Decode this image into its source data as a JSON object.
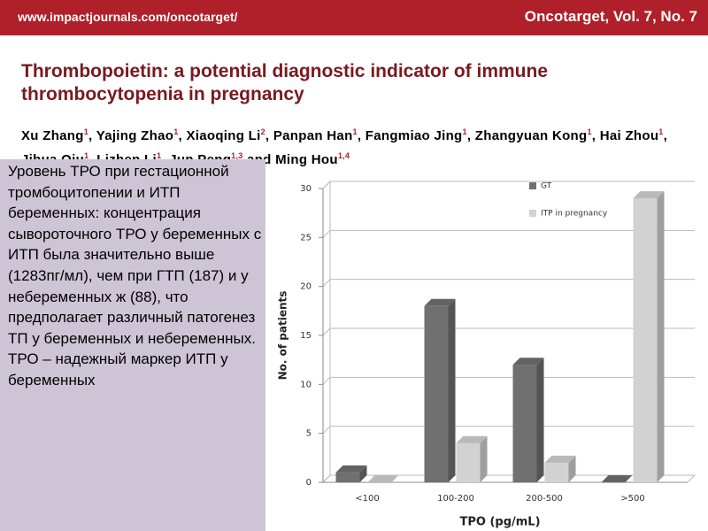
{
  "header": {
    "url": "www.impactjournals.com/oncotarget/",
    "journal": "Oncotarget, Vol. 7, No. 7"
  },
  "paper": {
    "title": "Thrombopoietin: a potential diagnostic indicator of immune thrombocytopenia in pregnancy",
    "authors": [
      {
        "name": "Xu Zhang",
        "sup": "1",
        "sep": ", "
      },
      {
        "name": "Yajing Zhao",
        "sup": "1",
        "sep": ", "
      },
      {
        "name": "Xiaoqing Li",
        "sup": "2",
        "sep": ", "
      },
      {
        "name": "Panpan Han",
        "sup": "1",
        "sep": ", "
      },
      {
        "name": "Fangmiao Jing",
        "sup": "1",
        "sep": ", "
      },
      {
        "name": "Zhangyuan Kong",
        "sup": "1",
        "sep": ", "
      },
      {
        "name": "Hai Zhou",
        "sup": "1",
        "sep": ", "
      },
      {
        "name": "Jihua Qiu",
        "sup": "1",
        "sep": ", "
      },
      {
        "name": "Lizhen Li",
        "sup": "1",
        "sep": ", "
      },
      {
        "name": "Jun Peng",
        "sup": "1,3",
        "sep": " and "
      },
      {
        "name": "Ming Hou",
        "sup": "1,4"
      }
    ]
  },
  "note": {
    "paragraphs": [
      "Уровень ТРО  при гестационной тромбоцитопении и ИТП беременных: концентрация сывороточного ТРО  у беременных с ИТП была значительно выше (1283пг/мл), чем при ГТП (187) и у небеременных ж (88), что предполагает различный патогенез ТП у беременных и небеременных.",
      "ТРО –  надежный маркер ИТП у беременных"
    ]
  },
  "chart_data": {
    "type": "bar3d",
    "categories": [
      "<100",
      "100-200",
      "200-500",
      ">500"
    ],
    "series": [
      {
        "name": "GT",
        "color": "#707070",
        "values": [
          1,
          18,
          12,
          0
        ]
      },
      {
        "name": "ITP in pregnancy",
        "color": "#d2d2d2",
        "values": [
          0,
          4,
          2,
          29
        ]
      }
    ],
    "xlabel": "TPO (pg/mL)",
    "ylabel": "No. of patients",
    "ylim": [
      0,
      30
    ],
    "yticks": [
      0,
      5,
      10,
      15,
      20,
      25,
      30
    ],
    "grid": true,
    "legend": "top-right"
  }
}
